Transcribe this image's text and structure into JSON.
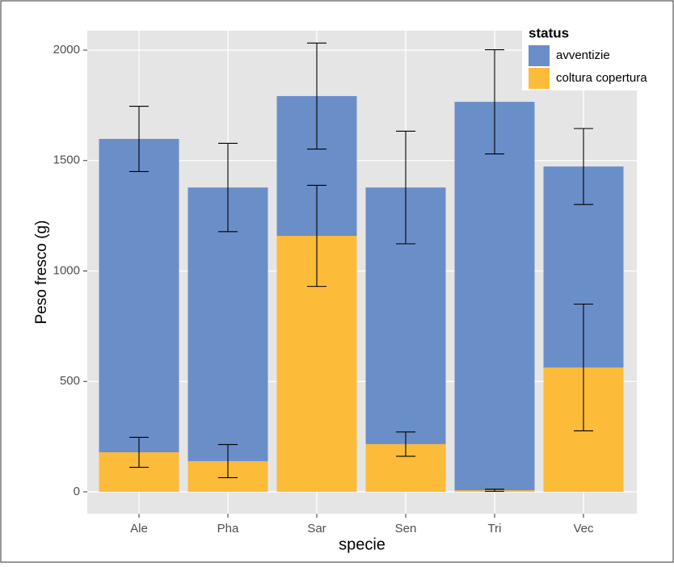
{
  "chart_data": {
    "type": "stacked-bar",
    "x_label": "specie",
    "y_label": "Peso fresco (g)",
    "categories": [
      "Ale",
      "Pha",
      "Sar",
      "Sen",
      "Tri",
      "Vec"
    ],
    "series": [
      {
        "name": "coltura copertura",
        "color": "#FDBB3A",
        "values": [
          179,
          139,
          1159,
          216,
          7,
          563
        ],
        "errors": [
          68,
          75,
          229,
          55,
          5,
          287
        ]
      },
      {
        "name": "avventizie",
        "color": "#6A8EC8",
        "values": [
          1419,
          1239,
          633,
          1162,
          1759,
          910
        ],
        "errors": [
          148,
          200,
          240,
          255,
          236,
          172
        ]
      }
    ],
    "ylim": [
      -99,
      2088
    ],
    "yticks": [
      0,
      500,
      1000,
      1500,
      2000
    ],
    "grid": true,
    "legend": {
      "title": "status",
      "position": "top-right"
    }
  }
}
